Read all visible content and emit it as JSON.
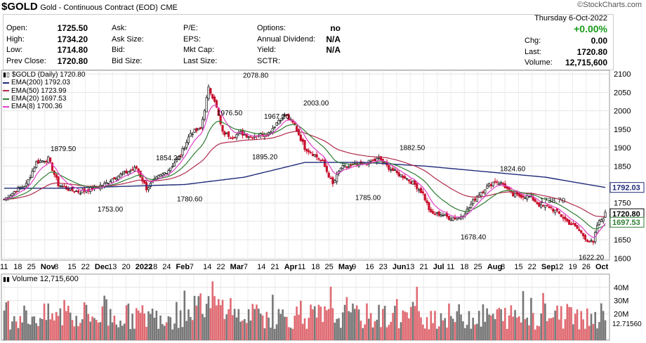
{
  "header": {
    "symbol": "$GOLD",
    "name": "Gold - Continuous Contract (EOD)",
    "exchange": "CME",
    "logo": "©StockCharts.com",
    "date": "Thursday  6-Oct-2022",
    "change_pct": "+0.00%"
  },
  "quote": {
    "col1": [
      [
        "Open:",
        "1725.50"
      ],
      [
        "High:",
        "1734.20"
      ],
      [
        "Low:",
        "1714.80"
      ],
      [
        "Prev Close:",
        "1720.80"
      ]
    ],
    "col2": [
      [
        "Ask:",
        ""
      ],
      [
        "Ask Size:",
        ""
      ],
      [
        "Bid:",
        ""
      ],
      [
        "Bid Size:",
        ""
      ]
    ],
    "col3": [
      [
        "P/E:",
        ""
      ],
      [
        "EPS:",
        ""
      ],
      [
        "Mkt Cap:",
        ""
      ],
      [
        "Last Size:",
        ""
      ]
    ],
    "col4": [
      [
        "Options:",
        "no"
      ],
      [
        "Annual Dividend:",
        "N/A"
      ],
      [
        "Yield:",
        "N/A"
      ],
      [
        "SCTR:",
        ""
      ]
    ],
    "right": [
      [
        "Chg:",
        "0.00"
      ],
      [
        "Last:",
        "1720.80"
      ],
      [
        "Volume:",
        "12,715,600"
      ]
    ]
  },
  "legend": {
    "price": "$GOLD (Daily) 1720.80",
    "emas": [
      {
        "label": "EMA(200) 1792.03",
        "color": "#1f2a7a"
      },
      {
        "label": "EMA(50) 1723.99",
        "color": "#b22a4a"
      },
      {
        "label": "EMA(20) 1697.53",
        "color": "#2e7d32"
      },
      {
        "label": "EMA(8) 1700.36",
        "color": "#e040c8"
      }
    ],
    "volume": "Volume 12,715,600"
  },
  "chart_data": {
    "type": "candlestick",
    "title": "$GOLD (Daily)",
    "ylim": [
      1595,
      2110
    ],
    "yticks": [
      1600,
      1650,
      1700,
      1750,
      1800,
      1850,
      1900,
      1950,
      2000,
      2050,
      2100
    ],
    "x_tick_labels": [
      "11",
      "18",
      "25",
      "Nov",
      "8",
      "15",
      "22",
      "Dec",
      "13",
      "20",
      "2022",
      "18",
      "24",
      "Feb",
      "7",
      "14",
      "22",
      "Mar",
      "7",
      "14",
      "21",
      "Apr",
      "11",
      "18",
      "25",
      "May",
      "9",
      "16",
      "23",
      "Jun",
      "13",
      "21",
      "Jul",
      "11",
      "18",
      "25",
      "Aug",
      "8",
      "15",
      "22",
      "Sep",
      "12",
      "19",
      "26",
      "Oct"
    ],
    "x_month_labels": [
      "Nov",
      "Dec",
      "2022",
      "Feb",
      "Mar",
      "Apr",
      "May",
      "Jun",
      "Jul",
      "Aug",
      "Sep",
      "Oct"
    ],
    "price_annotations": [
      "1879.50",
      "1753.00",
      "1854.20",
      "1780.60",
      "1976.50",
      "2078.80",
      "1967.20",
      "1895.20",
      "2003.00",
      "1785.00",
      "1882.50",
      "1678.40",
      "1824.60",
      "1738.70",
      "1622.20"
    ],
    "right_axis_labels": [
      {
        "value": 1792.03,
        "label": "1792.03",
        "color": "#1f2a7a"
      },
      {
        "value": 1720.8,
        "label": "1720.80",
        "color": "#000000"
      },
      {
        "value": 1697.53,
        "label": "1697.53",
        "color": "#2e7d32"
      }
    ],
    "close_path": [
      [
        0,
        1760
      ],
      [
        6,
        1785
      ],
      [
        11,
        1800
      ],
      [
        16,
        1860
      ],
      [
        22,
        1870
      ],
      [
        27,
        1800
      ],
      [
        33,
        1785
      ],
      [
        38,
        1780
      ],
      [
        44,
        1790
      ],
      [
        50,
        1800
      ],
      [
        55,
        1820
      ],
      [
        60,
        1830
      ],
      [
        66,
        1845
      ],
      [
        71,
        1790
      ],
      [
        77,
        1820
      ],
      [
        82,
        1840
      ],
      [
        88,
        1880
      ],
      [
        93,
        1940
      ],
      [
        98,
        1950
      ],
      [
        102,
        2060
      ],
      [
        105,
        2030
      ],
      [
        109,
        1940
      ],
      [
        114,
        1930
      ],
      [
        118,
        1940
      ],
      [
        123,
        1930
      ],
      [
        127,
        1935
      ],
      [
        132,
        1940
      ],
      [
        137,
        1975
      ],
      [
        140,
        1990
      ],
      [
        145,
        1960
      ],
      [
        150,
        1900
      ],
      [
        155,
        1880
      ],
      [
        159,
        1860
      ],
      [
        164,
        1800
      ],
      [
        168,
        1845
      ],
      [
        173,
        1850
      ],
      [
        178,
        1855
      ],
      [
        182,
        1860
      ],
      [
        187,
        1870
      ],
      [
        191,
        1850
      ],
      [
        196,
        1830
      ],
      [
        200,
        1820
      ],
      [
        205,
        1800
      ],
      [
        209,
        1775
      ],
      [
        213,
        1720
      ],
      [
        218,
        1720
      ],
      [
        222,
        1710
      ],
      [
        227,
        1710
      ],
      [
        231,
        1730
      ],
      [
        236,
        1770
      ],
      [
        240,
        1790
      ],
      [
        245,
        1810
      ],
      [
        249,
        1800
      ],
      [
        254,
        1770
      ],
      [
        258,
        1770
      ],
      [
        263,
        1765
      ],
      [
        268,
        1740
      ],
      [
        272,
        1740
      ],
      [
        277,
        1720
      ],
      [
        281,
        1700
      ],
      [
        286,
        1680
      ],
      [
        291,
        1650
      ],
      [
        294,
        1640
      ],
      [
        296,
        1690
      ],
      [
        300,
        1720
      ]
    ],
    "ema200_path": [
      [
        0,
        1790
      ],
      [
        30,
        1790
      ],
      [
        60,
        1795
      ],
      [
        90,
        1800
      ],
      [
        120,
        1820
      ],
      [
        150,
        1860
      ],
      [
        180,
        1860
      ],
      [
        210,
        1850
      ],
      [
        240,
        1835
      ],
      [
        270,
        1820
      ],
      [
        300,
        1792.03
      ]
    ],
    "volume_ylim": [
      0,
      50
    ],
    "volume_yticks": [
      "40M",
      "30M",
      "20M",
      "12.71560"
    ]
  }
}
